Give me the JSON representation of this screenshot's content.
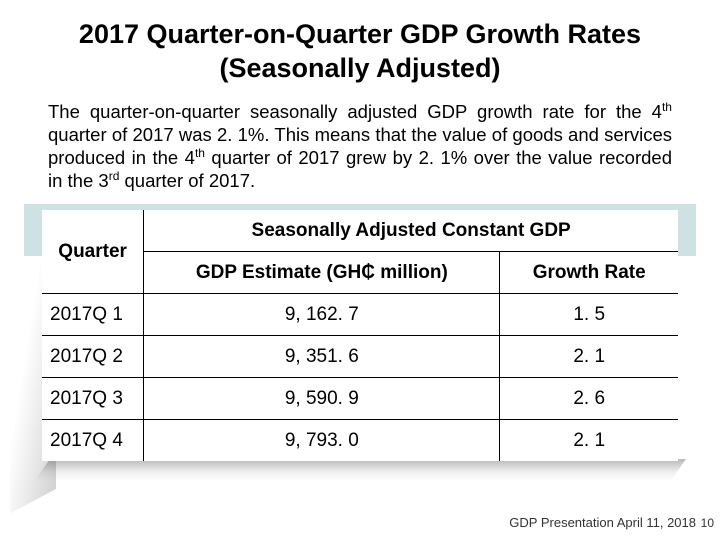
{
  "title_line1": "2017 Quarter-on-Quarter GDP Growth Rates",
  "title_line2": "(Seasonally Adjusted)",
  "paragraph_html": "The quarter-on-quarter seasonally adjusted GDP growth rate for the 4<sup>th</sup> quarter of 2017 was 2. 1%. This means that the value of goods and services produced in the 4<sup>th</sup> quarter of 2017 grew by 2. 1% over the value recorded in the 3<sup>rd</sup> quarter of 2017.",
  "table": {
    "quarter_header": "Quarter",
    "section_header": "Seasonally Adjusted Constant GDP",
    "estimate_header": "GDP Estimate (GH₵ million)",
    "growth_header": "Growth Rate",
    "columns_width_pct": [
      16,
      56,
      28
    ],
    "background_color": "#ffffff",
    "border_color": "#000000",
    "band_color": "#cee2e4",
    "header_fontsize_pt": 20,
    "section_fontsize_pt": 22,
    "body_fontsize_pt": 19,
    "rows": [
      {
        "quarter": "2017Q 1",
        "estimate": "9, 162. 7",
        "growth": "1. 5"
      },
      {
        "quarter": "2017Q 2",
        "estimate": "9, 351. 6",
        "growth": "2. 1"
      },
      {
        "quarter": "2017Q 3",
        "estimate": "9, 590. 9",
        "growth": "2. 6"
      },
      {
        "quarter": "2017Q 4",
        "estimate": "9, 793. 0",
        "growth": "2. 1"
      }
    ]
  },
  "footer_text": "GDP Presentation April 11, 2018",
  "page_number": "10",
  "colors": {
    "text": "#000000",
    "footer": "#333333",
    "band": "#cee2e4",
    "background": "#ffffff"
  },
  "typography": {
    "title_fontsize_pt": 27,
    "body_fontsize_pt": 18.5,
    "footer_fontsize_pt": 13,
    "title_font": "Trebuchet MS",
    "body_font": "Arial"
  }
}
